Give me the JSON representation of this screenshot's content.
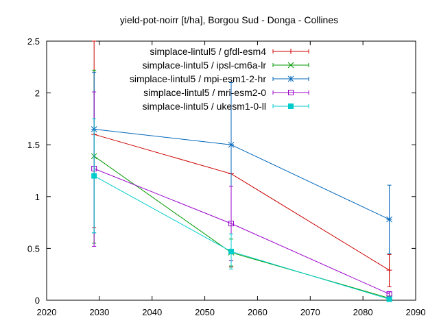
{
  "chart_data": {
    "type": "line",
    "title": "yield-pot-noirr [t/ha], Borgou Sud - Donga - Collines",
    "xlabel": "",
    "ylabel": "",
    "xlim": [
      2020,
      2090
    ],
    "ylim": [
      0,
      2.5
    ],
    "xticks": [
      2020,
      2030,
      2040,
      2050,
      2060,
      2070,
      2080,
      2090
    ],
    "yticks": [
      0,
      0.5,
      1,
      1.5,
      2,
      2.5
    ],
    "ytick_labels": [
      "0",
      "0.5",
      "1",
      "1.5",
      "2",
      "2.5"
    ],
    "grid": false,
    "legend_position": "top-right",
    "series": [
      {
        "name": "simplace-lintul5 / gfdl-esm4",
        "color": "#cc0000",
        "marker": "plus",
        "points": [
          {
            "x": 2029,
            "y": 1.6,
            "err_low": 0.7,
            "err_high": 2.5
          },
          {
            "x": 2055,
            "y": 1.22,
            "err_low": 0.32,
            "err_high": 2.1
          },
          {
            "x": 2085,
            "y": 0.29,
            "err_low": 0.13,
            "err_high": 0.44
          }
        ]
      },
      {
        "name": "simplace-lintul5 / ipsl-cm6a-lr",
        "color": "#009900",
        "marker": "x",
        "points": [
          {
            "x": 2029,
            "y": 1.39,
            "err_low": 0.55,
            "err_high": 2.22
          },
          {
            "x": 2055,
            "y": 0.46,
            "err_low": 0.33,
            "err_high": 0.59
          },
          {
            "x": 2085,
            "y": 0.02,
            "err_low": 0.0,
            "err_high": 0.04
          }
        ]
      },
      {
        "name": "simplace-lintul5 / mpi-esm1-2-hr",
        "color": "#0066bb",
        "marker": "star",
        "points": [
          {
            "x": 2029,
            "y": 1.65,
            "err_low": 0.65,
            "err_high": 2.2
          },
          {
            "x": 2055,
            "y": 1.5,
            "err_low": 0.38,
            "err_high": 2.1
          },
          {
            "x": 2085,
            "y": 0.78,
            "err_low": 0.45,
            "err_high": 1.11
          }
        ]
      },
      {
        "name": "simplace-lintul5 / mri-esm2-0",
        "color": "#9900cc",
        "marker": "square-open",
        "points": [
          {
            "x": 2029,
            "y": 1.27,
            "err_low": 0.52,
            "err_high": 2.01
          },
          {
            "x": 2055,
            "y": 0.74,
            "err_low": 0.38,
            "err_high": 1.1
          },
          {
            "x": 2085,
            "y": 0.06,
            "err_low": 0.03,
            "err_high": 0.08
          }
        ]
      },
      {
        "name": "simplace-lintul5 / ukesm1-0-ll",
        "color": "#00cccc",
        "marker": "square-filled",
        "points": [
          {
            "x": 2029,
            "y": 1.2,
            "err_low": 0.65,
            "err_high": 1.75
          },
          {
            "x": 2055,
            "y": 0.47,
            "err_low": 0.3,
            "err_high": 0.64
          },
          {
            "x": 2085,
            "y": 0.01,
            "err_low": 0.0,
            "err_high": 0.02
          }
        ]
      }
    ]
  }
}
